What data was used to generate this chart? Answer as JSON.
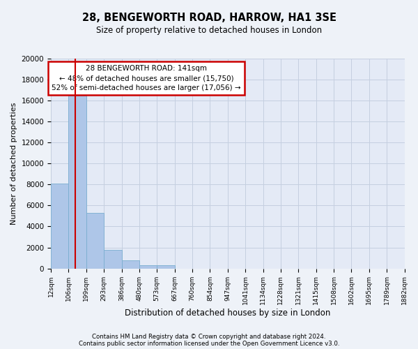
{
  "title": "28, BENGEWORTH ROAD, HARROW, HA1 3SE",
  "subtitle": "Size of property relative to detached houses in London",
  "xlabel": "Distribution of detached houses by size in London",
  "ylabel": "Number of detached properties",
  "footnote1": "Contains HM Land Registry data © Crown copyright and database right 2024.",
  "footnote2": "Contains public sector information licensed under the Open Government Licence v3.0.",
  "annotation_title": "28 BENGEWORTH ROAD: 141sqm",
  "annotation_line1": "← 48% of detached houses are smaller (15,750)",
  "annotation_line2": "52% of semi-detached houses are larger (17,056) →",
  "bar_color": "#aec6e8",
  "bar_edge_color": "#7aaed0",
  "red_line_color": "#cc0000",
  "annotation_box_edge": "#cc0000",
  "bin_labels": [
    "12sqm",
    "106sqm",
    "199sqm",
    "293sqm",
    "386sqm",
    "480sqm",
    "573sqm",
    "667sqm",
    "760sqm",
    "854sqm",
    "947sqm",
    "1041sqm",
    "1134sqm",
    "1228sqm",
    "1321sqm",
    "1415sqm",
    "1508sqm",
    "1602sqm",
    "1695sqm",
    "1789sqm",
    "1882sqm"
  ],
  "bar_heights": [
    8100,
    16500,
    5300,
    1800,
    800,
    300,
    300,
    0,
    0,
    0,
    0,
    0,
    0,
    0,
    0,
    0,
    0,
    0,
    0,
    0
  ],
  "ylim": [
    0,
    20000
  ],
  "yticks": [
    0,
    2000,
    4000,
    6000,
    8000,
    10000,
    12000,
    14000,
    16000,
    18000,
    20000
  ],
  "background_color": "#eef2f8",
  "plot_bg_color": "#e4eaf6",
  "grid_color": "#c5cfe0"
}
